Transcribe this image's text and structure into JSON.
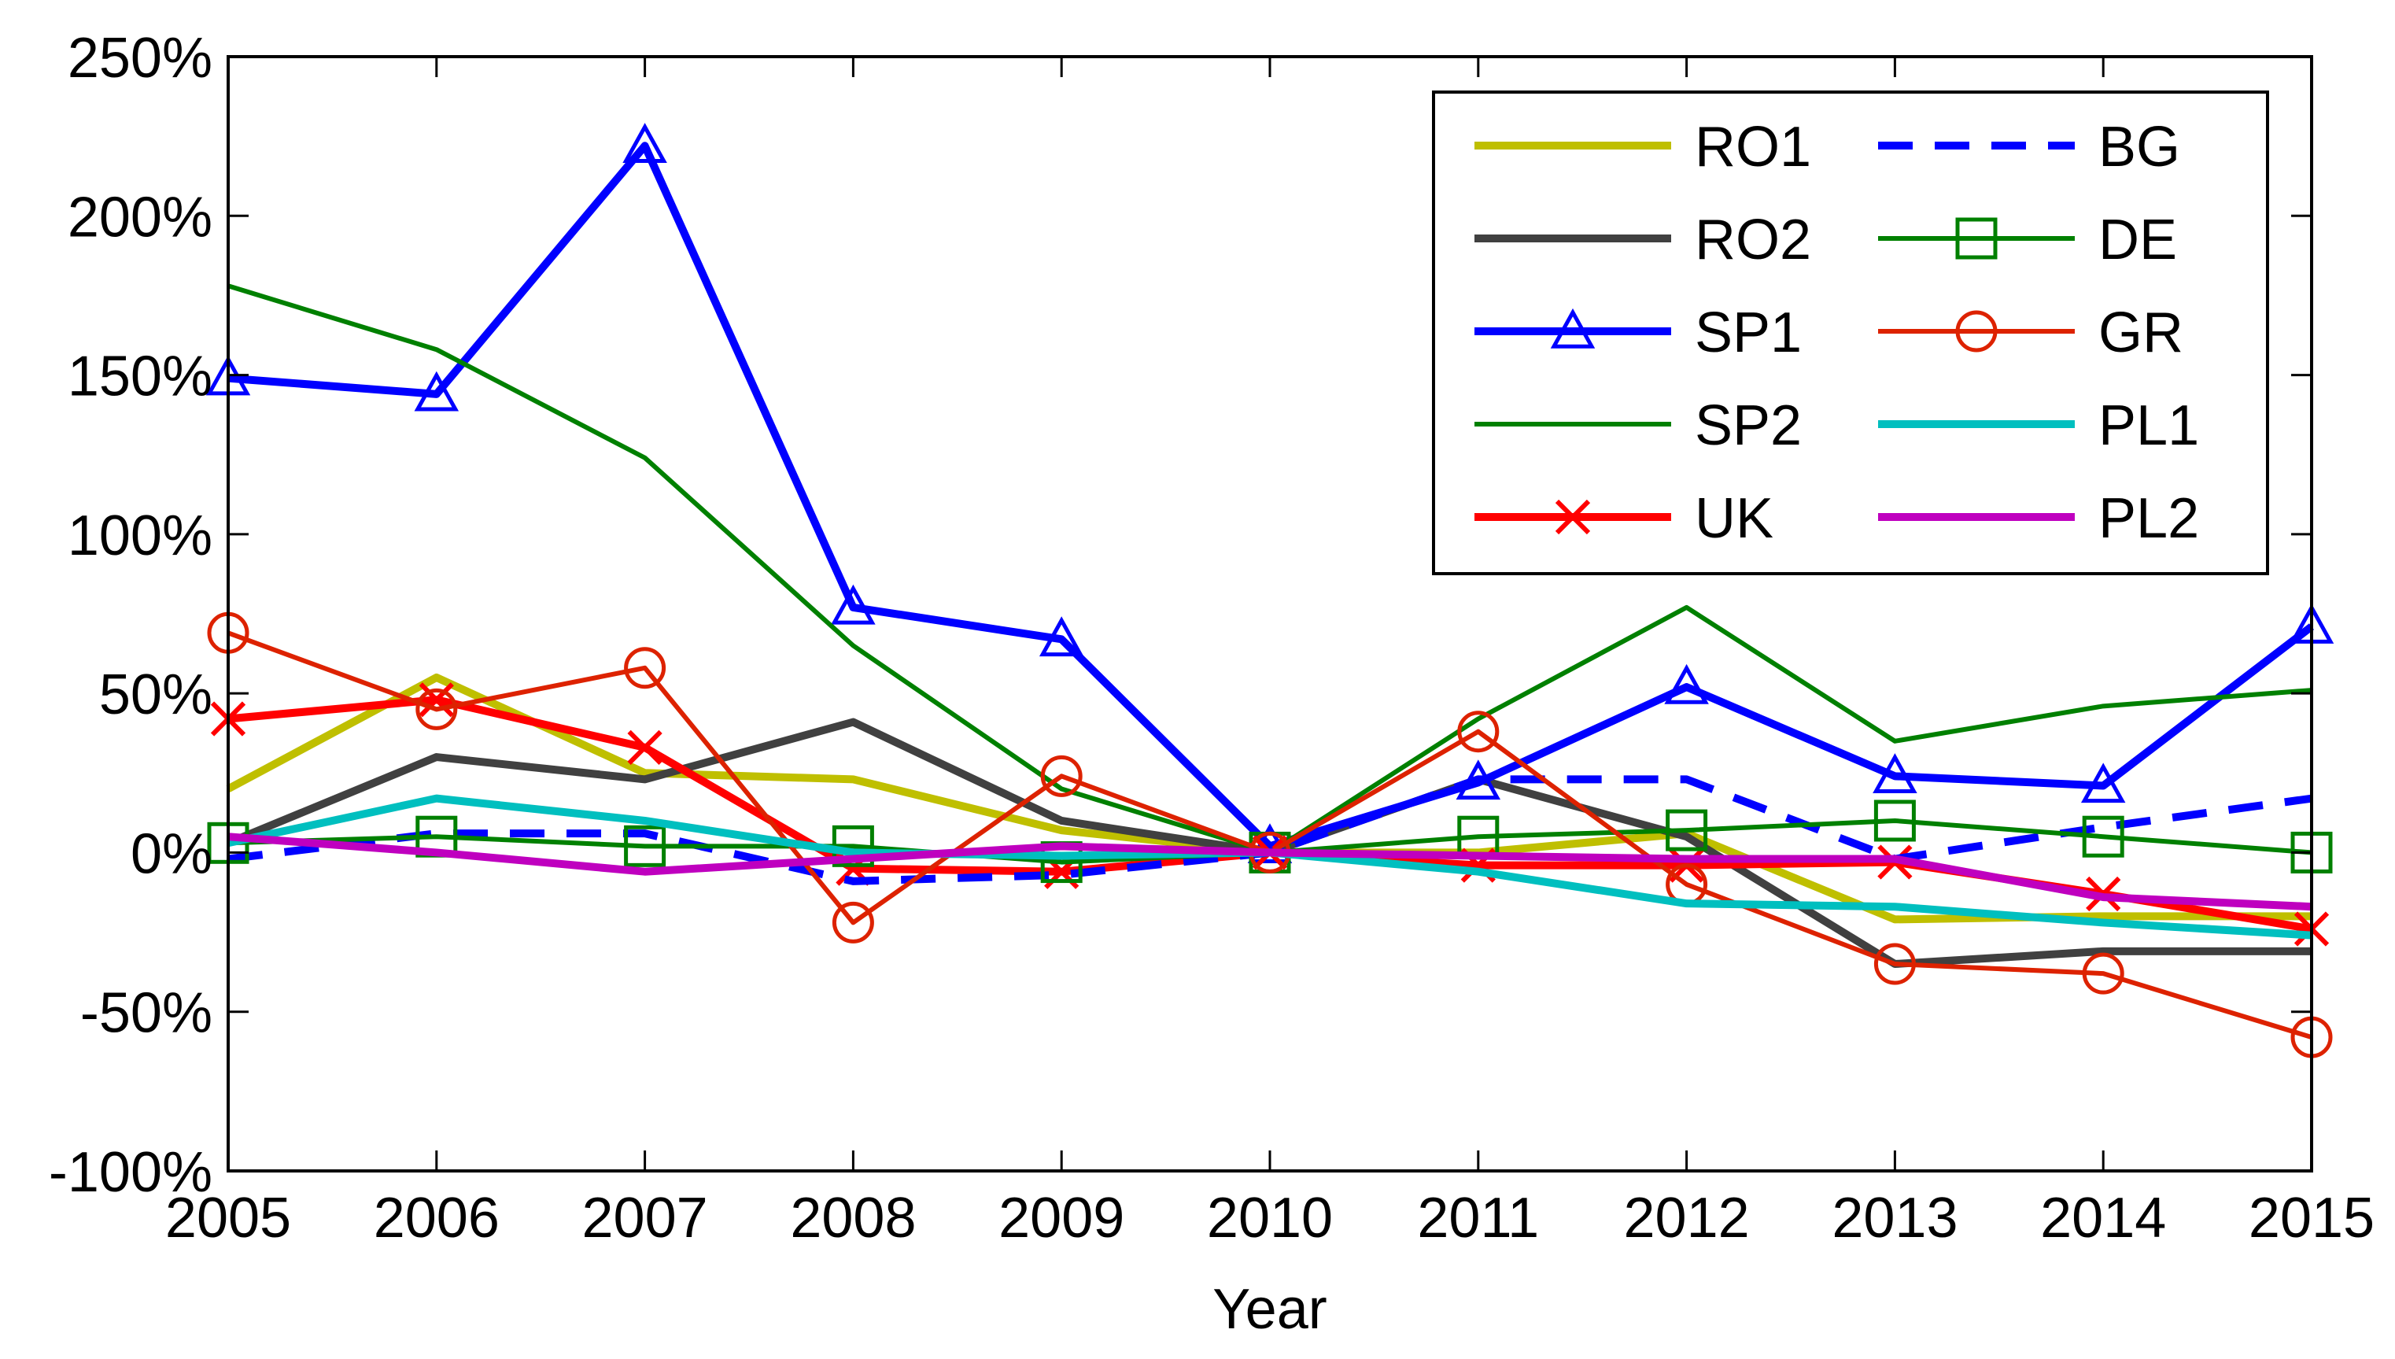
{
  "chart_data": {
    "type": "line",
    "title": "",
    "xlabel": "Year",
    "ylabel": "",
    "x": [
      2005,
      2006,
      2007,
      2008,
      2009,
      2010,
      2011,
      2012,
      2013,
      2014,
      2015
    ],
    "x_tick_labels": [
      "2005",
      "2006",
      "2007",
      "2008",
      "2009",
      "2010",
      "2011",
      "2012",
      "2013",
      "2014",
      "2015"
    ],
    "ylim": [
      -100,
      250
    ],
    "y_ticks": [
      -100,
      -50,
      0,
      50,
      100,
      150,
      200,
      250
    ],
    "y_tick_labels": [
      "-100%",
      "-50%",
      "0%",
      "50%",
      "100%",
      "150%",
      "200%",
      "250%"
    ],
    "grid": false,
    "legend_position": "top-right",
    "series": [
      {
        "name": "RO1",
        "color": "#bfbf00",
        "dash": "solid",
        "marker": "none",
        "width": "thick",
        "values": [
          20,
          55,
          25,
          23,
          7,
          0,
          0,
          6,
          -21,
          -20,
          -20
        ]
      },
      {
        "name": "RO2",
        "color": "#404040",
        "dash": "solid",
        "marker": "none",
        "width": "thick",
        "values": [
          3,
          30,
          23,
          41,
          10,
          0,
          23,
          5,
          -35,
          -31,
          -31
        ]
      },
      {
        "name": "SP1",
        "color": "#0000ff",
        "dash": "solid",
        "marker": "triangle",
        "width": "thick",
        "values": [
          149,
          144,
          222,
          77,
          67,
          2,
          22,
          52,
          24,
          21,
          71
        ]
      },
      {
        "name": "SP2",
        "color": "#008000",
        "dash": "solid",
        "marker": "none",
        "width": "thin",
        "values": [
          178,
          158,
          124,
          65,
          20,
          0,
          42,
          77,
          35,
          46,
          51
        ]
      },
      {
        "name": "UK",
        "color": "#ff0000",
        "dash": "solid",
        "marker": "x",
        "width": "thick",
        "values": [
          42,
          48,
          33,
          -5,
          -6,
          0,
          -4,
          -4,
          -3,
          -13,
          -24
        ]
      },
      {
        "name": "BG",
        "color": "#0000ff",
        "dash": "dashed",
        "marker": "none",
        "width": "thick",
        "values": [
          -2,
          6,
          6,
          -9,
          -7,
          0,
          23,
          23,
          -2,
          8,
          17
        ]
      },
      {
        "name": "DE",
        "color": "#008000",
        "dash": "solid",
        "marker": "square",
        "width": "thin",
        "values": [
          3,
          5,
          2,
          2,
          -3,
          0,
          5,
          7,
          10,
          5,
          0
        ]
      },
      {
        "name": "GR",
        "color": "#dd2200",
        "dash": "solid",
        "marker": "circle",
        "width": "thin",
        "values": [
          69,
          45,
          58,
          -22,
          24,
          0,
          38,
          -10,
          -35,
          -38,
          -58
        ]
      },
      {
        "name": "PL1",
        "color": "#00bfbf",
        "dash": "solid",
        "marker": "none",
        "width": "thick",
        "values": [
          3,
          17,
          10,
          0,
          -1,
          0,
          -6,
          -16,
          -17,
          -22,
          -26
        ]
      },
      {
        "name": "PL2",
        "color": "#bf00bf",
        "dash": "solid",
        "marker": "none",
        "width": "thick",
        "values": [
          5,
          0,
          -6,
          -2,
          2,
          0,
          -1,
          -2,
          -2,
          -14,
          -17
        ]
      }
    ]
  }
}
